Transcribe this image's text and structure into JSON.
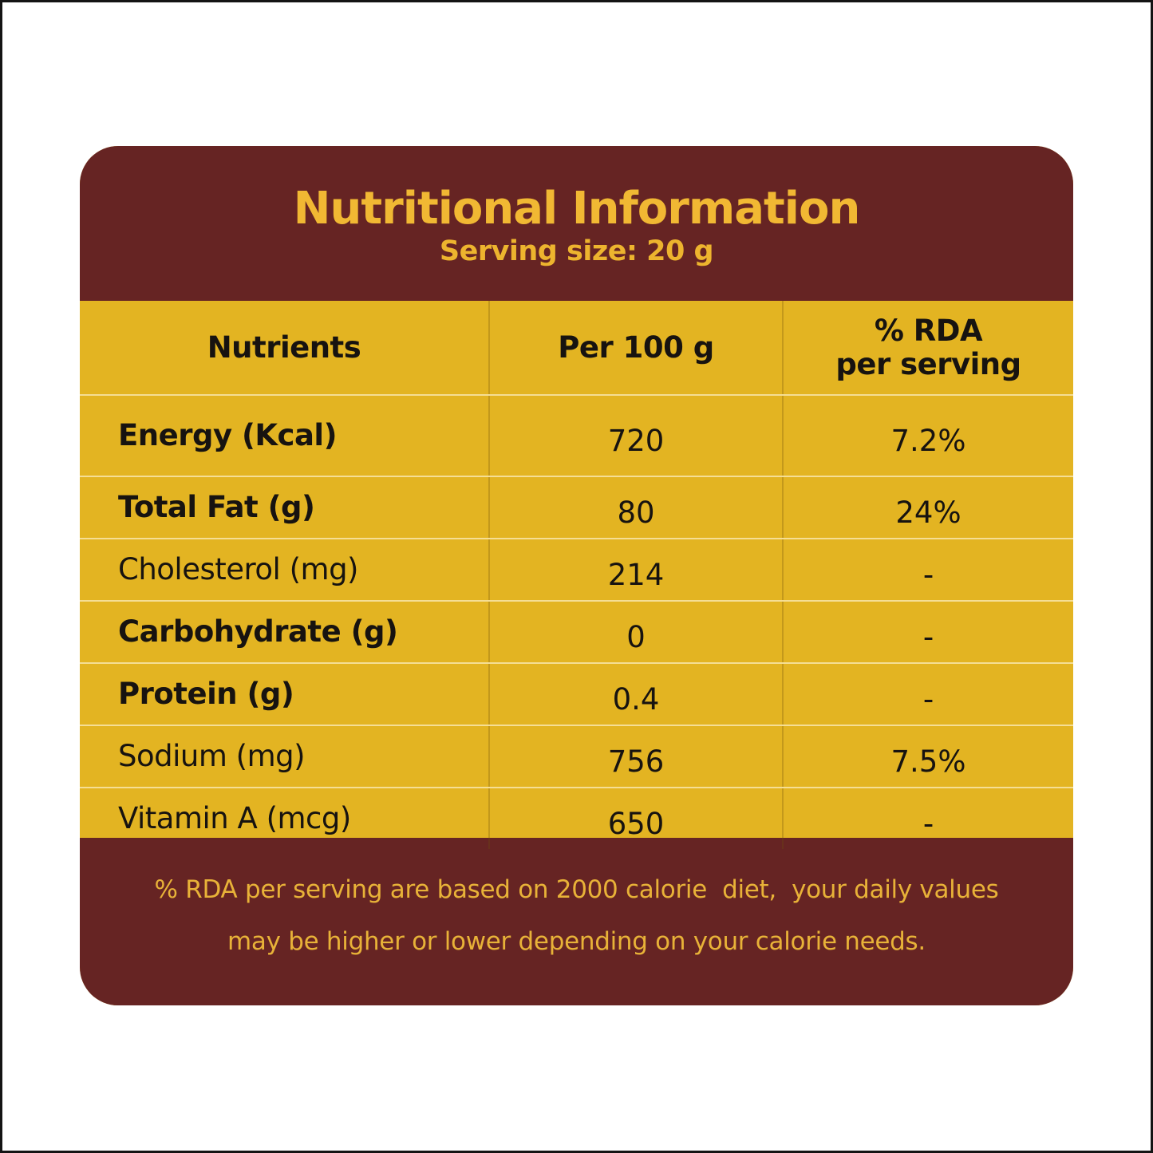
{
  "colors": {
    "canvas_background": "#ffffff",
    "canvas_frame": "#141414",
    "maroon": "#662423",
    "gold": "#E3B422",
    "title_yellow": "#F1B833",
    "footer_yellow": "#E8B238",
    "table_text": "#171310"
  },
  "header": {
    "title": "Nutritional Information",
    "serving_size": "Serving size: 20 g"
  },
  "table": {
    "columns": {
      "nutrients": "Nutrients",
      "per_100g": "Per 100 g",
      "rda_line1": "% RDA",
      "rda_line2": "per serving"
    },
    "rows": [
      {
        "nutrient": "Energy (Kcal)",
        "per100g": "720",
        "rda": "7.2%",
        "bold": true
      },
      {
        "nutrient": "Total Fat (g)",
        "per100g": "80",
        "rda": "24%",
        "bold": true
      },
      {
        "nutrient": "Cholesterol (mg)",
        "per100g": "214",
        "rda": "-",
        "bold": false
      },
      {
        "nutrient": "Carbohydrate (g)",
        "per100g": "0",
        "rda": "-",
        "bold": true
      },
      {
        "nutrient": "Protein (g)",
        "per100g": "0.4",
        "rda": "-",
        "bold": true
      },
      {
        "nutrient": "Sodium (mg)",
        "per100g": "756",
        "rda": "7.5%",
        "bold": false
      },
      {
        "nutrient": "Vitamin A (mcg)",
        "per100g": "650",
        "rda": "-",
        "bold": false
      }
    ]
  },
  "footer": {
    "line1": "% RDA per serving are based on 2000 calorie  diet,  your daily values",
    "line2": "may be higher or lower depending on your calorie needs."
  }
}
